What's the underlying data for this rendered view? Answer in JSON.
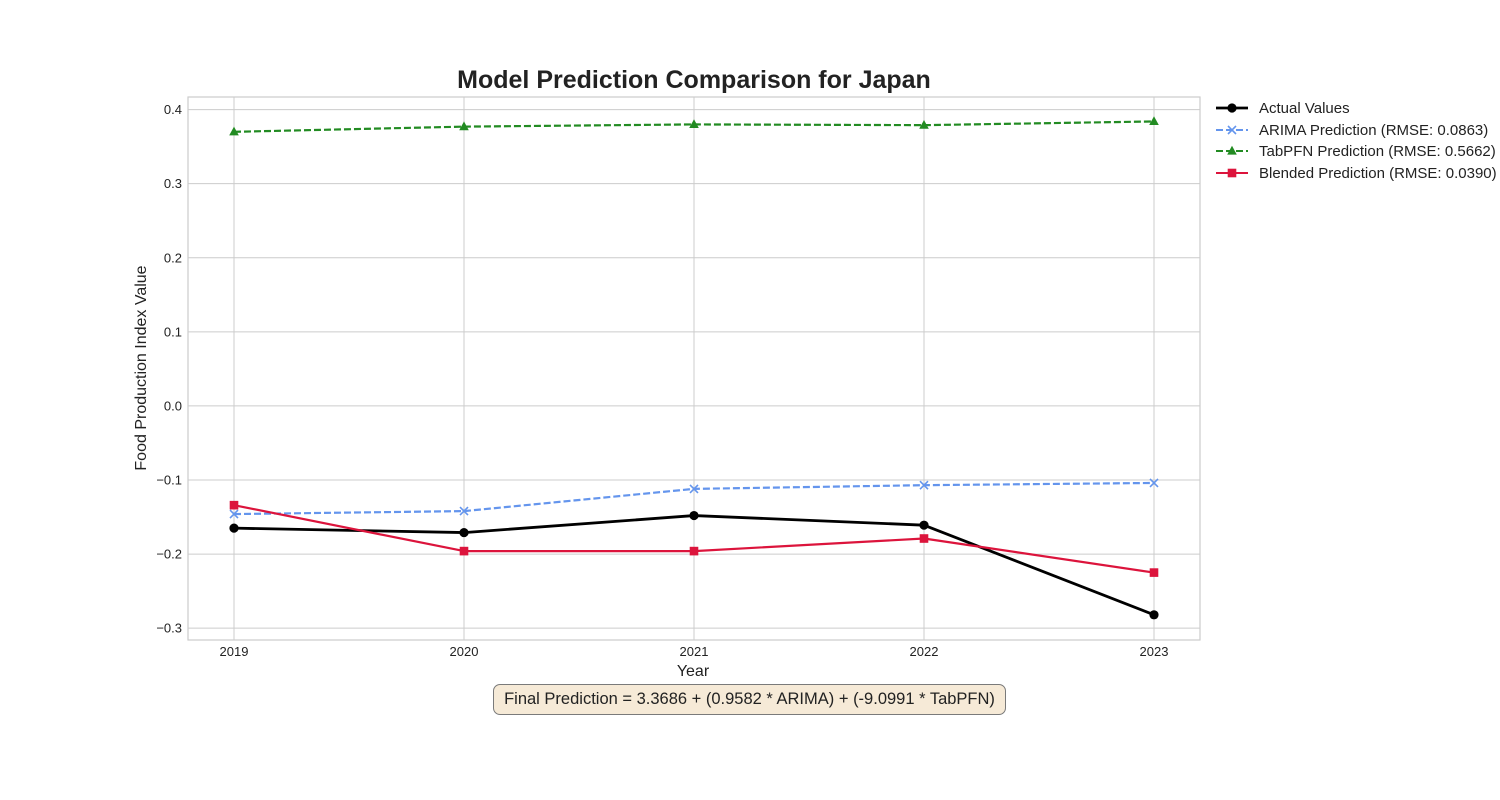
{
  "chart_data": {
    "type": "line",
    "title": "Model Prediction Comparison for Japan",
    "xlabel": "Year",
    "ylabel": "Food Production Index Value",
    "x": [
      2019,
      2020,
      2021,
      2022,
      2023
    ],
    "x_tick_labels": [
      "2019",
      "2020",
      "2021",
      "2022",
      "2023"
    ],
    "ylim": [
      -0.316,
      0.417
    ],
    "y_ticks": [
      -0.3,
      -0.2,
      -0.1,
      0.0,
      0.1,
      0.2,
      0.3,
      0.4
    ],
    "y_tick_labels": [
      "−0.3",
      "−0.2",
      "−0.1",
      "0.0",
      "0.1",
      "0.2",
      "0.3",
      "0.4"
    ],
    "grid": true,
    "legend_position": "outside-top-right",
    "series": [
      {
        "name": "Actual Values",
        "values": [
          -0.165,
          -0.171,
          -0.148,
          -0.161,
          -0.282
        ],
        "color": "#000000",
        "marker": "circle",
        "dash": "solid"
      },
      {
        "name": "ARIMA Prediction (RMSE: 0.0863)",
        "values": [
          -0.146,
          -0.142,
          -0.112,
          -0.107,
          -0.104
        ],
        "color": "#6495ed",
        "marker": "x",
        "dash": "dashed"
      },
      {
        "name": "TabPFN Prediction (RMSE: 0.5662)",
        "values": [
          0.37,
          0.377,
          0.38,
          0.379,
          0.384
        ],
        "color": "#228b22",
        "marker": "triangle",
        "dash": "dashed"
      },
      {
        "name": "Blended Prediction (RMSE: 0.0390)",
        "values": [
          -0.134,
          -0.196,
          -0.196,
          -0.179,
          -0.225
        ],
        "color": "#dc143c",
        "marker": "square",
        "dash": "solid"
      }
    ],
    "annotation": "Final Prediction = 3.3686 + (0.9582 * ARIMA) + (-9.0991 * TabPFN)"
  }
}
